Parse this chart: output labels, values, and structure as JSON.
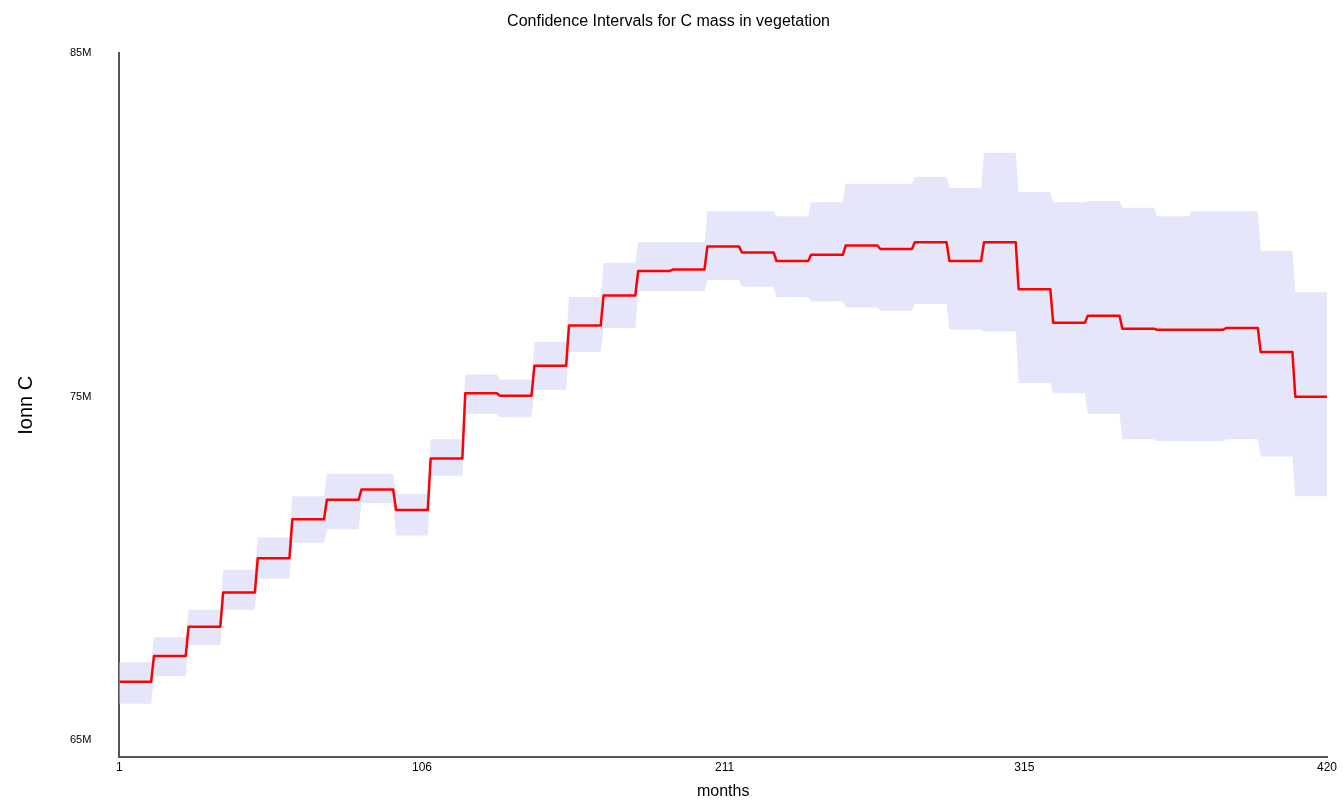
{
  "chart_data": {
    "type": "line",
    "title": "Confidence Intervals for C mass in vegetation",
    "xlabel": "months",
    "ylabel": "Ionn C",
    "x": [
      1,
      12,
      13,
      24,
      25,
      36,
      37,
      48,
      49,
      60,
      61,
      72,
      73,
      84,
      85,
      96,
      97,
      108,
      109,
      120,
      121,
      132,
      133,
      144,
      145,
      156,
      157,
      168,
      169,
      180,
      181,
      192,
      193,
      204,
      205,
      216,
      217,
      228,
      229,
      240,
      241,
      252,
      253,
      264,
      265,
      276,
      277,
      288,
      289,
      300,
      301,
      312,
      313,
      324,
      325,
      336,
      337,
      348,
      349,
      360,
      361,
      372,
      373,
      384,
      385,
      396,
      397,
      408,
      409,
      420
    ],
    "series": [
      {
        "color": "#ff0000",
        "values": [
          66700000,
          66700000,
          67450000,
          67450000,
          68300000,
          68300000,
          69300000,
          69300000,
          70300000,
          70300000,
          71430000,
          71430000,
          72000000,
          72000000,
          72300000,
          72300000,
          71700000,
          71700000,
          73200000,
          73200000,
          75100000,
          75100000,
          75030000,
          75030000,
          75900000,
          75900000,
          77070000,
          77070000,
          77950000,
          77950000,
          78660000,
          78660000,
          78700000,
          78700000,
          79370000,
          79370000,
          79200000,
          79200000,
          78950000,
          78950000,
          79130000,
          79130000,
          79400000,
          79400000,
          79300000,
          79300000,
          79500000,
          79500000,
          78950000,
          78950000,
          79500000,
          79500000,
          78130000,
          78130000,
          77150000,
          77150000,
          77360000,
          77360000,
          76980000,
          76980000,
          76950000,
          76950000,
          76950000,
          76950000,
          77000000,
          77000000,
          76300000,
          76300000,
          75000000,
          75000000
        ],
        "lower": [
          66060000,
          66060000,
          66860000,
          66860000,
          67770000,
          67770000,
          68800000,
          68800000,
          69700000,
          69700000,
          70750000,
          70750000,
          71140000,
          71140000,
          71900000,
          71900000,
          70960000,
          70960000,
          72700000,
          72700000,
          74500000,
          74500000,
          74400000,
          74400000,
          75200000,
          75200000,
          76300000,
          76300000,
          77000000,
          77000000,
          78070000,
          78070000,
          78070000,
          78070000,
          78400000,
          78400000,
          78200000,
          78200000,
          77900000,
          77900000,
          77770000,
          77770000,
          77600000,
          77600000,
          77500000,
          77500000,
          77700000,
          77700000,
          76950000,
          76950000,
          76900000,
          76900000,
          75400000,
          75400000,
          75100000,
          75100000,
          74500000,
          74500000,
          73760000,
          73760000,
          73700000,
          73700000,
          73700000,
          73700000,
          73760000,
          73760000,
          73260000,
          73260000,
          72100000,
          72100000
        ],
        "upper": [
          67270000,
          67270000,
          68000000,
          68000000,
          68800000,
          68800000,
          69960000,
          69960000,
          70900000,
          70900000,
          72100000,
          72100000,
          72760000,
          72760000,
          72760000,
          72760000,
          72170000,
          72170000,
          73760000,
          73760000,
          75650000,
          75650000,
          75500000,
          75500000,
          76600000,
          76600000,
          77900000,
          77900000,
          78900000,
          78900000,
          79500000,
          79500000,
          79500000,
          79500000,
          80400000,
          80400000,
          80400000,
          80400000,
          80250000,
          80250000,
          80660000,
          80660000,
          81200000,
          81200000,
          81200000,
          81200000,
          81400000,
          81400000,
          81080000,
          81080000,
          82100000,
          82100000,
          80960000,
          80960000,
          80660000,
          80660000,
          80700000,
          80700000,
          80500000,
          80500000,
          80250000,
          80250000,
          80400000,
          80400000,
          80400000,
          80400000,
          79250000,
          79250000,
          78040000,
          78040000
        ]
      }
    ],
    "xlim": [
      1,
      420
    ],
    "xticks": [
      1,
      106,
      211,
      315,
      420
    ],
    "ylim": [
      64500000,
      85000000
    ],
    "yticks": [
      {
        "value": 65000000,
        "label": "65M"
      },
      {
        "value": 75000000,
        "label": "75M"
      },
      {
        "value": 85000000,
        "label": "85M"
      }
    ],
    "grid": false,
    "legend": false,
    "marker": "none",
    "line_style": "solid"
  }
}
